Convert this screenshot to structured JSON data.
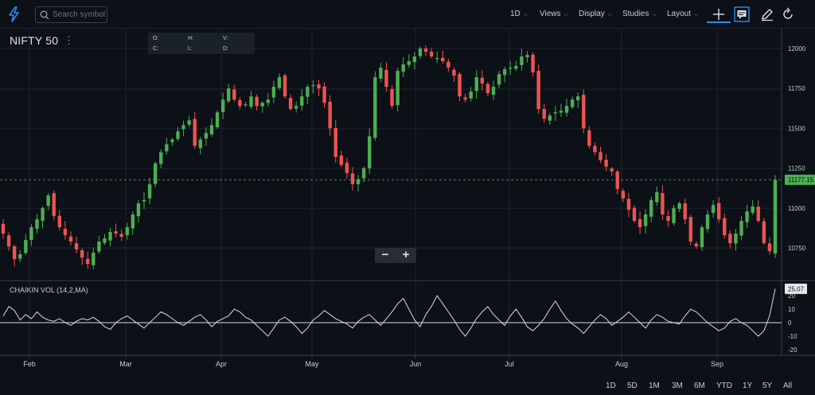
{
  "toolbar": {
    "search_placeholder": "Search symbol",
    "interval": "1D",
    "views": "Views",
    "display": "Display",
    "studies": "Studies",
    "layout": "Layout",
    "icons": [
      "lightning-icon",
      "search-icon",
      "crosshair-icon",
      "comment-icon",
      "pencil-icon",
      "reset-icon"
    ]
  },
  "legend": {
    "symbol": "NIFTY 50",
    "menu": "⋮",
    "ohlc_labels": [
      "O:",
      "H:",
      "V:",
      "C:",
      "L:",
      "D:"
    ]
  },
  "zoom": {
    "minus": "−",
    "plus": "+"
  },
  "indicator": {
    "label": "CHAIKIN VOL (14,2,MA)"
  },
  "ranges": [
    "1D",
    "5D",
    "1M",
    "3M",
    "6M",
    "YTD",
    "1Y",
    "5Y",
    "All"
  ],
  "colors": {
    "background": "#0c1017",
    "up": "#4caf50",
    "down": "#ef5350",
    "grid": "#1e2530",
    "accent": "#2d8cf0",
    "last_price_tag": "#4caf50",
    "indicator_line": "#d9dce1"
  },
  "chart_data": [
    {
      "type": "candlestick",
      "title": "NIFTY 50",
      "x_labels": [
        "Feb",
        "Mar",
        "Apr",
        "May",
        "Jun",
        "Jul",
        "Aug",
        "Sep"
      ],
      "y_ticks": [
        12000,
        11750,
        11500,
        11250,
        11000,
        10750
      ],
      "ylim": [
        10620,
        12110
      ],
      "last_price": 11177.15,
      "last_price_label": "11177.15",
      "grid": true,
      "closes": [
        10840,
        10760,
        10680,
        10710,
        10800,
        10880,
        10930,
        11000,
        11080,
        10950,
        10880,
        10830,
        10790,
        10740,
        10690,
        10650,
        10720,
        10790,
        10810,
        10850,
        10840,
        10820,
        10880,
        10960,
        11030,
        11050,
        11150,
        11280,
        11350,
        11400,
        11430,
        11480,
        11520,
        11550,
        11390,
        11430,
        11470,
        11520,
        11600,
        11680,
        11750,
        11680,
        11640,
        11650,
        11700,
        11640,
        11660,
        11680,
        11760,
        11820,
        11700,
        11620,
        11640,
        11700,
        11760,
        11770,
        11750,
        11660,
        11500,
        11320,
        11270,
        11220,
        11150,
        11180,
        11250,
        11450,
        11820,
        11880,
        11760,
        11640,
        11860,
        11900,
        11920,
        11950,
        12000,
        11980,
        11950,
        11940,
        11920,
        11880,
        11830,
        11700,
        11680,
        11730,
        11820,
        11780,
        11720,
        11760,
        11840,
        11870,
        11880,
        11890,
        11950,
        11960,
        11850,
        11620,
        11560,
        11580,
        11600,
        11610,
        11640,
        11680,
        11700,
        11500,
        11390,
        11350,
        11300,
        11260,
        11230,
        11120,
        11060,
        10990,
        10920,
        10880,
        10960,
        11050,
        11100,
        10960,
        10920,
        11000,
        11030,
        10930,
        10790,
        10760,
        10880,
        10960,
        11020,
        10930,
        10830,
        10780,
        10840,
        10920,
        10980,
        11010,
        10920,
        10780,
        10730,
        11177.15
      ]
    },
    {
      "type": "line",
      "title": "CHAIKIN VOL (14,2,MA)",
      "x_labels": [
        "Feb",
        "Mar",
        "Apr",
        "May",
        "Jun",
        "Jul",
        "Aug",
        "Sep"
      ],
      "y_ticks": [
        20,
        10,
        0,
        -10,
        -20
      ],
      "ylim": [
        -26,
        28
      ],
      "last_value_label": "25.07",
      "values": [
        5,
        12,
        9,
        2,
        6,
        3,
        8,
        4,
        2,
        1,
        3,
        0,
        -2,
        1,
        3,
        2,
        4,
        1,
        -3,
        -5,
        0,
        3,
        5,
        2,
        -1,
        -4,
        0,
        4,
        8,
        6,
        3,
        0,
        -2,
        1,
        4,
        6,
        2,
        -3,
        1,
        3,
        5,
        10,
        8,
        4,
        2,
        -2,
        -6,
        -10,
        -4,
        2,
        4,
        1,
        -3,
        -8,
        -4,
        2,
        5,
        9,
        6,
        3,
        1,
        -1,
        -4,
        1,
        4,
        6,
        2,
        -2,
        3,
        8,
        14,
        18,
        10,
        2,
        -3,
        6,
        12,
        20,
        14,
        8,
        2,
        -5,
        -10,
        -4,
        3,
        8,
        12,
        6,
        2,
        -2,
        5,
        10,
        4,
        -3,
        -6,
        -2,
        3,
        10,
        16,
        9,
        3,
        -1,
        -4,
        -8,
        -3,
        2,
        6,
        3,
        -2,
        1,
        4,
        8,
        4,
        0,
        -4,
        2,
        6,
        4,
        1,
        0,
        -1,
        5,
        10,
        8,
        4,
        0,
        -3,
        -6,
        -4,
        1,
        3,
        0,
        -2,
        -6,
        -10,
        -6,
        5,
        25.07
      ]
    }
  ]
}
